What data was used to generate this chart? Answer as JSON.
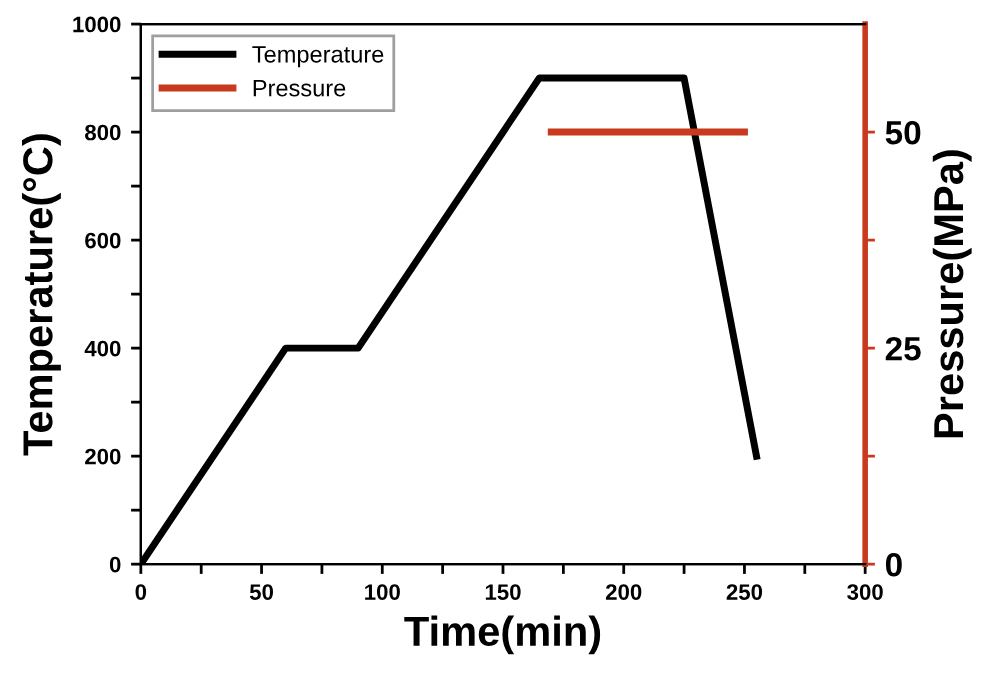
{
  "chart_data": {
    "type": "line",
    "xlabel": "Time(min)",
    "ylabel": "Temperature(°C)",
    "y2label": "Pressure(MPa)",
    "series": [
      {
        "name": "Temperature",
        "color": "#000000",
        "x": [
          0,
          60,
          90,
          165,
          225,
          255
        ],
        "values": [
          0,
          400,
          400,
          900,
          900,
          200
        ]
      },
      {
        "name": "Pressure",
        "color": "#c8391e",
        "axis": "y2",
        "x": [
          170,
          250
        ],
        "values": [
          50,
          50
        ]
      }
    ],
    "xlim": [
      0,
      300
    ],
    "ylim": [
      0,
      1000
    ],
    "y2lim": [
      0,
      62.5
    ],
    "xticks": [
      0,
      {
        "value": 25,
        "label": null
      },
      50,
      {
        "value": 75,
        "label": null
      },
      100,
      {
        "value": 125,
        "label": null
      },
      150,
      {
        "value": 175,
        "label": null
      },
      200,
      {
        "value": 225,
        "label": null
      },
      250,
      {
        "value": 275,
        "label": null
      },
      300
    ],
    "yticks": [
      0,
      {
        "value": 100,
        "label": null
      },
      200,
      {
        "value": 300,
        "label": null
      },
      400,
      {
        "value": 500,
        "label": null
      },
      600,
      {
        "value": 700,
        "label": null
      },
      800,
      {
        "value": 900,
        "label": null
      },
      1000
    ],
    "y2ticks": [
      0,
      {
        "value": 12.5,
        "label": null
      },
      25,
      {
        "value": 37.5,
        "label": null
      },
      50
    ],
    "legend": "top left",
    "grid": false,
    "marker": "none",
    "line_style": "solid"
  }
}
